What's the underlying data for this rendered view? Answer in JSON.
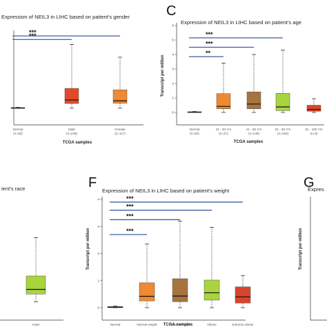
{
  "panels": [
    {
      "label": "",
      "title": "Expression of NEIL3 in LIHC based on patient's gender",
      "xlabel": "TCGA samples",
      "ylabel": "",
      "frame": {
        "left": -6,
        "right": 224,
        "top": 42,
        "bottom": 177
      }
    },
    {
      "label": "C",
      "title": "Expression of NEIL3 in LIHC based on patient's age",
      "xlabel": "TCGA samples",
      "ylabel": "Transcript per million",
      "frame": {
        "left": 240,
        "right": 472,
        "top": 37,
        "bottom": 183
      }
    },
    {
      "label": "",
      "title": "ient's race",
      "xlabel": "",
      "ylabel": "",
      "frame": {
        "left": -6,
        "right": 108,
        "top": 258,
        "bottom": 462
      }
    },
    {
      "label": "F",
      "title": "Expression of NEIL3 in LIHC based on patient's weight",
      "xlabel": "TCGA samples",
      "ylabel": "Transcript per million",
      "frame": {
        "left": 140,
        "right": 366,
        "top": 258,
        "bottom": 464
      }
    },
    {
      "label": "G",
      "title": "Expres",
      "xlabel": "",
      "ylabel": "Transcript per million",
      "frame": {
        "left": 450,
        "right": 480,
        "top": 258,
        "bottom": 464
      }
    }
  ],
  "chart_data": [
    {
      "type": "box",
      "title": "Expression of NEIL3 in LIHC based on patient's gender",
      "xlabel": "TCGA samples",
      "ylabel": "",
      "ylim": [
        -0.3,
        5.3
      ],
      "y_ticks": [],
      "categories": [
        "Normal",
        "Male",
        "Female"
      ],
      "counts": [
        "(n=50)",
        "(n=245)",
        "(n=117)"
      ],
      "boxes": [
        {
          "min": 0.0,
          "q1": 0.0,
          "median": 0.02,
          "q3": 0.04,
          "max": 0.06,
          "color": "#1f3a5f"
        },
        {
          "min": 0.0,
          "q1": 0.33,
          "median": 0.58,
          "q3": 1.4,
          "max": 4.5,
          "color": "#e2492b"
        },
        {
          "min": 0.0,
          "q1": 0.35,
          "median": 0.52,
          "q3": 1.3,
          "max": 3.6,
          "color": "#ee8a32"
        }
      ],
      "significance": [
        {
          "label": "***",
          "from": 0,
          "to": 1,
          "y": 4.85
        },
        {
          "label": "***",
          "from": 0,
          "to": 2,
          "y": 5.1
        }
      ]
    },
    {
      "type": "box",
      "title": "Expression of NEIL3 in LIHC based on patient's age",
      "xlabel": "TCGA samples",
      "ylabel": "Transcript per million",
      "ylim": [
        0,
        6
      ],
      "y_ticks": [
        0,
        1,
        2,
        3,
        4,
        5,
        6
      ],
      "categories": [
        "Normal",
        "21 - 40 Yrs",
        "41 - 60 Yrs",
        "61 - 80 Yrs",
        "81 - 100 Yrs"
      ],
      "counts": [
        "(n=50)",
        "(n=27)",
        "(n=140)",
        "(n=183)",
        "(n=8)"
      ],
      "boxes": [
        {
          "min": 0.0,
          "q1": 0.0,
          "median": 0.02,
          "q3": 0.05,
          "max": 0.07,
          "color": "#1f3a5f"
        },
        {
          "min": 0.0,
          "q1": 0.25,
          "median": 0.42,
          "q3": 1.3,
          "max": 3.4,
          "color": "#ee8a32"
        },
        {
          "min": 0.0,
          "q1": 0.25,
          "median": 0.58,
          "q3": 1.42,
          "max": 4.0,
          "color": "#a6743f"
        },
        {
          "min": 0.0,
          "q1": 0.13,
          "median": 0.38,
          "q3": 1.32,
          "max": 4.3,
          "color": "#a9d43e"
        },
        {
          "min": 0.0,
          "q1": 0.08,
          "median": 0.2,
          "q3": 0.5,
          "max": 0.95,
          "color": "#d9452b"
        }
      ],
      "significance": [
        {
          "label": "**",
          "from": 0,
          "to": 1,
          "y": 3.85
        },
        {
          "label": "***",
          "from": 0,
          "to": 2,
          "y": 4.5
        },
        {
          "label": "***",
          "from": 0,
          "to": 3,
          "y": 5.15
        }
      ]
    },
    {
      "type": "box",
      "title": "",
      "xlabel": "",
      "ylabel": "",
      "ylim": [
        -0.3,
        5.3
      ],
      "y_ticks": [],
      "categories": [
        "Asian"
      ],
      "counts": [
        "(n=157)"
      ],
      "boxes": [
        {
          "min": 0.0,
          "q1": 0.4,
          "median": 0.64,
          "q3": 1.33,
          "max": 3.3,
          "color": "#a9d43e"
        }
      ],
      "significance": []
    },
    {
      "type": "box",
      "title": "Expression of NEIL3 in LIHC based on patient's weight",
      "xlabel": "TCGA samples",
      "ylabel": "Transcript per million",
      "ylim": [
        0,
        4
      ],
      "y_ticks": [
        0,
        1,
        2,
        3,
        4
      ],
      "categories": [
        "Normal",
        "Normal weight",
        "Extreme weight",
        "Obese",
        "Extreme obese"
      ],
      "counts": [
        "(n=50)",
        "(n=154)",
        "(n=68)",
        "(n=57)",
        "(n=11)"
      ],
      "boxes": [
        {
          "min": 0.0,
          "q1": 0.0,
          "median": 0.02,
          "q3": 0.04,
          "max": 0.06,
          "color": "#1f3a5f"
        },
        {
          "min": 0.0,
          "q1": 0.25,
          "median": 0.42,
          "q3": 0.92,
          "max": 2.35,
          "color": "#ee8a32"
        },
        {
          "min": 0.0,
          "q1": 0.22,
          "median": 0.43,
          "q3": 1.07,
          "max": 3.2,
          "color": "#a6743f"
        },
        {
          "min": 0.0,
          "q1": 0.28,
          "median": 0.55,
          "q3": 1.02,
          "max": 2.97,
          "color": "#a9d43e"
        },
        {
          "min": 0.0,
          "q1": 0.17,
          "median": 0.4,
          "q3": 0.77,
          "max": 1.18,
          "color": "#d9452b"
        }
      ],
      "significance": [
        {
          "label": "***",
          "from": 0,
          "to": 1,
          "y": 2.7
        },
        {
          "label": "***",
          "from": 0,
          "to": 2,
          "y": 3.25
        },
        {
          "label": "***",
          "from": 0,
          "to": 3,
          "y": 3.6
        },
        {
          "label": "***",
          "from": 0,
          "to": 4,
          "y": 3.9
        }
      ]
    },
    {
      "type": "box",
      "title": "",
      "xlabel": "",
      "ylabel": "",
      "ylim": [
        0,
        4
      ],
      "y_ticks": [],
      "categories": [],
      "counts": [],
      "boxes": [],
      "significance": []
    }
  ]
}
